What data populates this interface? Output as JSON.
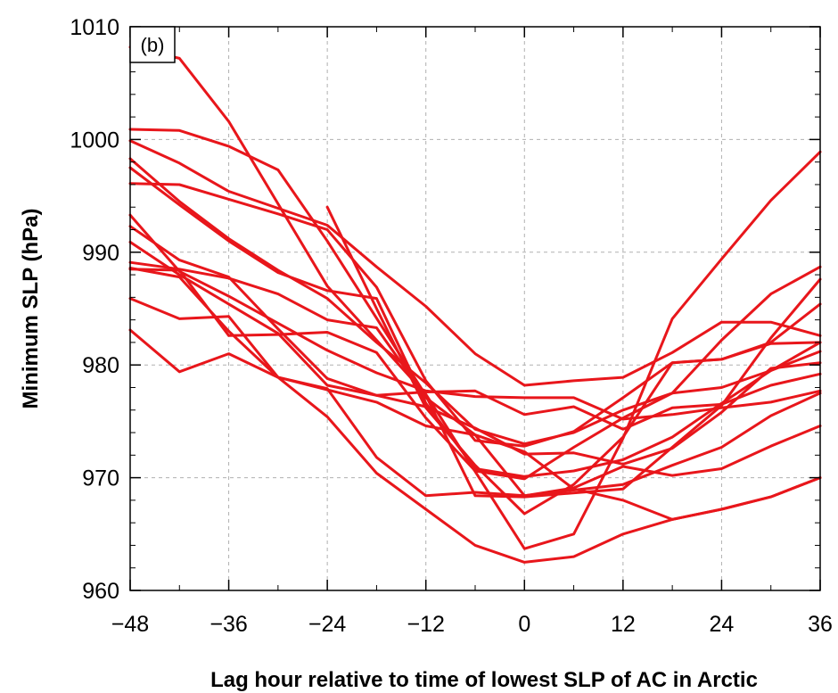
{
  "chart_data": {
    "type": "line",
    "panel_label": "(b)",
    "xlabel": "Lag hour relative to time of lowest SLP of AC in Arctic",
    "ylabel": "Minimum SLP (hPa)",
    "xlim": [
      -48,
      36
    ],
    "ylim": [
      960,
      1010
    ],
    "xticks": [
      -48,
      -36,
      -24,
      -12,
      0,
      12,
      24,
      36
    ],
    "xtick_labels": [
      "−48",
      "−36",
      "−24",
      "−12",
      "0",
      "12",
      "24",
      "36"
    ],
    "yticks": [
      960,
      970,
      980,
      990,
      1000,
      1010
    ],
    "ytick_labels": [
      "960",
      "970",
      "980",
      "990",
      "1000",
      "1010"
    ],
    "grid": true,
    "line_color": "#e8161b",
    "series": [
      {
        "x": [
          -48,
          -42,
          -36,
          -24,
          -12,
          0,
          6,
          12,
          18,
          24,
          30,
          36
        ],
        "y": [
          1008.2,
          1007.2,
          1001.6,
          987.0,
          977.4,
          963.7,
          965.0,
          973.5,
          984.1,
          989.4,
          994.6,
          998.9
        ]
      },
      {
        "x": [
          -48,
          -42,
          -36,
          -30,
          -24,
          -12,
          -6,
          0,
          12,
          24,
          30,
          36
        ],
        "y": [
          1000.9,
          1000.8,
          999.4,
          997.3,
          991.0,
          977.3,
          968.4,
          968.3,
          969.0,
          976.4,
          982.4,
          987.6
        ]
      },
      {
        "x": [
          -48,
          -42,
          -36,
          -24,
          -18,
          -12,
          -6,
          0,
          6,
          12,
          18,
          24,
          30,
          36
        ],
        "y": [
          999.9,
          997.9,
          995.4,
          992.4,
          988.7,
          985.2,
          981.0,
          978.2,
          978.6,
          978.9,
          981.1,
          983.8,
          983.8,
          982.6
        ]
      },
      {
        "x": [
          -48,
          -42,
          -36,
          -30,
          -24,
          -18,
          -12,
          -6,
          0,
          6,
          12,
          18,
          24,
          30,
          36
        ],
        "y": [
          996.1,
          996.0,
          994.7,
          993.4,
          992.0,
          986.9,
          978.6,
          973.3,
          972.8,
          974.1,
          977.1,
          980.2,
          980.5,
          981.9,
          982.0
        ]
      },
      {
        "x": [
          -48,
          -42,
          -36,
          -30,
          -24,
          -18,
          -12,
          -6,
          0,
          6,
          12,
          18,
          24,
          30,
          36
        ],
        "y": [
          998.3,
          994.5,
          991.2,
          988.4,
          985.9,
          982.0,
          978.4,
          974.3,
          973.0,
          974.0,
          976.0,
          977.5,
          982.2,
          986.3,
          988.7
        ]
      },
      {
        "x": [
          -48,
          -42,
          -36,
          -30,
          -24,
          -18,
          -12,
          -6,
          0,
          6,
          12,
          18,
          24,
          30,
          36
        ],
        "y": [
          997.5,
          994.2,
          991.0,
          988.2,
          986.6,
          985.9,
          976.6,
          970.8,
          970.1,
          970.6,
          971.6,
          973.6,
          976.6,
          979.5,
          982.0
        ]
      },
      {
        "x": [
          -24,
          -18,
          -12,
          -6,
          0,
          6,
          12,
          18,
          24,
          30,
          36
        ],
        "y": [
          994.0,
          985.0,
          976.2,
          971.1,
          966.8,
          969.4,
          973.6,
          980.2,
          980.5,
          982.0,
          985.4
        ]
      },
      {
        "x": [
          -48,
          -42,
          -36,
          -30,
          -24,
          -18,
          -12,
          -6,
          0,
          6,
          12,
          18,
          24,
          30,
          36
        ],
        "y": [
          993.3,
          988.3,
          986.1,
          983.7,
          981.3,
          979.3,
          977.7,
          977.2,
          977.1,
          977.1,
          975.2,
          975.6,
          976.2,
          976.7,
          977.7
        ]
      },
      {
        "x": [
          -48,
          -42,
          -36,
          -30,
          -24,
          -18,
          -12,
          -6,
          0,
          6,
          12,
          18,
          24,
          30,
          36
        ],
        "y": [
          992.3,
          989.3,
          987.8,
          983.2,
          978.8,
          977.3,
          977.6,
          977.7,
          975.6,
          976.3,
          974.3,
          976.2,
          976.5,
          978.2,
          979.2
        ]
      },
      {
        "x": [
          -48,
          -42,
          -36,
          -30,
          -24,
          -18,
          -12,
          -6,
          0,
          6,
          12,
          18,
          24,
          30,
          36
        ],
        "y": [
          990.9,
          988.0,
          985.4,
          982.8,
          978.2,
          977.3,
          976.3,
          974.4,
          972.1,
          972.2,
          971.2,
          972.6,
          975.8,
          979.7,
          980.2
        ]
      },
      {
        "x": [
          -48,
          -42,
          -36,
          -30,
          -24,
          -18,
          -12,
          -6,
          0,
          6,
          12,
          18,
          24,
          30,
          36
        ],
        "y": [
          989.1,
          988.5,
          987.7,
          986.3,
          984.0,
          983.3,
          977.1,
          973.8,
          968.4,
          968.9,
          969.4,
          971.1,
          972.7,
          975.5,
          977.5
        ]
      },
      {
        "x": [
          -48,
          -42,
          -36,
          -30,
          -24,
          -18,
          -12,
          -6,
          0,
          6,
          12,
          18,
          24,
          30,
          36
        ],
        "y": [
          988.5,
          988.4,
          982.6,
          982.7,
          982.9,
          981.1,
          975.3,
          970.6,
          969.9,
          972.7,
          975.3,
          977.5,
          978.0,
          979.5,
          981.2
        ]
      },
      {
        "x": [
          -48,
          -42,
          -36,
          -30,
          -24,
          -18,
          -12,
          -6,
          0,
          6,
          12,
          18,
          24,
          30,
          36
        ],
        "y": [
          985.9,
          984.1,
          984.3,
          978.9,
          977.9,
          971.8,
          968.4,
          968.7,
          968.4,
          969.1,
          971.0,
          970.2,
          970.8,
          972.8,
          974.6
        ]
      },
      {
        "x": [
          -48,
          -42,
          -36,
          -30,
          -24,
          -18,
          -12,
          -6,
          0,
          6,
          12,
          18,
          24,
          30,
          36
        ],
        "y": [
          983.1,
          979.4,
          981.0,
          978.9,
          977.8,
          976.7,
          974.6,
          973.8,
          972.3,
          969.0,
          968.0,
          966.3,
          967.2,
          968.3,
          970.0
        ]
      },
      {
        "x": [
          -48,
          -42,
          -36,
          -30,
          -24,
          -18,
          -12,
          -6,
          0,
          6,
          12,
          18,
          24,
          30,
          36
        ],
        "y": [
          988.6,
          987.8,
          983.0,
          978.9,
          975.4,
          970.4,
          967.2,
          964.0,
          962.5,
          963.0,
          965.0,
          966.3,
          967.2,
          968.3,
          970.0
        ]
      }
    ]
  }
}
